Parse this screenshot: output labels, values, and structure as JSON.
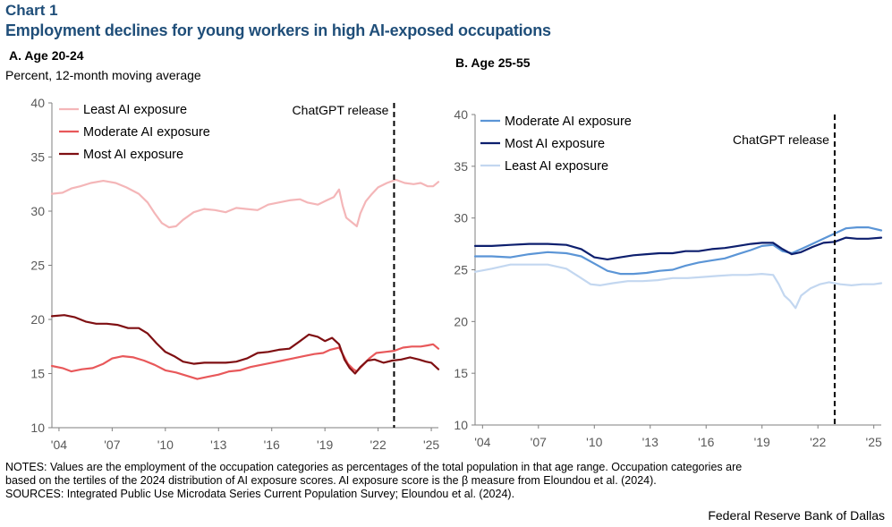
{
  "header": {
    "chart_label": "Chart 1",
    "title": "Employment declines for young workers in high AI-exposed occupations"
  },
  "units": "Percent, 12-month moving average",
  "notes": {
    "line1": "NOTES: Values are the employment of the occupation categories as percentages of the total population in that age range. Occupation categories are",
    "line2": "based on the tertiles of the 2024 distribution of AI exposure scores. AI exposure score is the β measure from Eloundou et al. (2024).",
    "line3": "SOURCES: Integrated Public Use Microdata Series Current Population Survey; Eloundou et al. (2024)."
  },
  "source_credit": "Federal Reserve Bank of Dallas",
  "colors": {
    "least_a": "#f4b6b8",
    "moderate_a": "#e8585a",
    "most_a": "#7f0f12",
    "moderate_b": "#5b95d6",
    "most_b": "#0d1f6e",
    "least_b": "#c3d7f0",
    "title": "#1f4e79"
  },
  "chart_data": [
    {
      "type": "line",
      "panel_title": "A. Age 20-24",
      "ylim": [
        10,
        40
      ],
      "yticks": [
        10,
        15,
        20,
        25,
        30,
        35,
        40
      ],
      "xlim": [
        2003.6,
        2025.4
      ],
      "xticks": [
        2004,
        2007,
        2010,
        2013,
        2016,
        2019,
        2022,
        2025
      ],
      "xtick_labels": [
        "'04",
        "'07",
        "'10",
        "'13",
        "'16",
        "'19",
        "'22",
        "'25"
      ],
      "grid": false,
      "legend_position": "top-left",
      "annotation": {
        "text": "ChatGPT release",
        "x": 2022.9
      },
      "series": [
        {
          "name": "Least AI exposure",
          "color_key": "least_a",
          "points": [
            [
              2003.6,
              31.6
            ],
            [
              2004.2,
              31.7
            ],
            [
              2004.7,
              32.1
            ],
            [
              2005.2,
              32.3
            ],
            [
              2005.8,
              32.6
            ],
            [
              2006.5,
              32.8
            ],
            [
              2007.2,
              32.6
            ],
            [
              2007.8,
              32.2
            ],
            [
              2008.5,
              31.6
            ],
            [
              2009.0,
              30.8
            ],
            [
              2009.4,
              29.8
            ],
            [
              2009.8,
              28.9
            ],
            [
              2010.2,
              28.5
            ],
            [
              2010.6,
              28.6
            ],
            [
              2011.0,
              29.2
            ],
            [
              2011.6,
              29.9
            ],
            [
              2012.2,
              30.2
            ],
            [
              2012.8,
              30.1
            ],
            [
              2013.4,
              29.9
            ],
            [
              2014.0,
              30.3
            ],
            [
              2014.6,
              30.2
            ],
            [
              2015.2,
              30.1
            ],
            [
              2015.8,
              30.6
            ],
            [
              2016.4,
              30.8
            ],
            [
              2017.0,
              31.0
            ],
            [
              2017.6,
              31.1
            ],
            [
              2018.0,
              30.8
            ],
            [
              2018.6,
              30.6
            ],
            [
              2019.1,
              31.0
            ],
            [
              2019.5,
              31.3
            ],
            [
              2019.8,
              32.0
            ],
            [
              2020.0,
              30.5
            ],
            [
              2020.2,
              29.4
            ],
            [
              2020.5,
              29.0
            ],
            [
              2020.8,
              28.6
            ],
            [
              2021.0,
              29.8
            ],
            [
              2021.3,
              30.9
            ],
            [
              2021.6,
              31.5
            ],
            [
              2022.0,
              32.2
            ],
            [
              2022.5,
              32.6
            ],
            [
              2023.0,
              32.9
            ],
            [
              2023.5,
              32.6
            ],
            [
              2024.0,
              32.5
            ],
            [
              2024.4,
              32.6
            ],
            [
              2024.8,
              32.3
            ],
            [
              2025.1,
              32.3
            ],
            [
              2025.4,
              32.7
            ]
          ]
        },
        {
          "name": "Moderate AI exposure",
          "color_key": "moderate_a",
          "points": [
            [
              2003.6,
              15.7
            ],
            [
              2004.2,
              15.5
            ],
            [
              2004.7,
              15.2
            ],
            [
              2005.3,
              15.4
            ],
            [
              2005.9,
              15.5
            ],
            [
              2006.5,
              15.9
            ],
            [
              2007.0,
              16.4
            ],
            [
              2007.6,
              16.6
            ],
            [
              2008.2,
              16.5
            ],
            [
              2008.8,
              16.2
            ],
            [
              2009.4,
              15.8
            ],
            [
              2010.0,
              15.3
            ],
            [
              2010.6,
              15.1
            ],
            [
              2011.2,
              14.8
            ],
            [
              2011.8,
              14.5
            ],
            [
              2012.4,
              14.7
            ],
            [
              2013.0,
              14.9
            ],
            [
              2013.6,
              15.2
            ],
            [
              2014.2,
              15.3
            ],
            [
              2014.8,
              15.6
            ],
            [
              2015.4,
              15.8
            ],
            [
              2016.0,
              16.0
            ],
            [
              2016.6,
              16.2
            ],
            [
              2017.2,
              16.4
            ],
            [
              2017.8,
              16.6
            ],
            [
              2018.4,
              16.8
            ],
            [
              2018.9,
              16.9
            ],
            [
              2019.3,
              17.2
            ],
            [
              2019.8,
              17.4
            ],
            [
              2020.0,
              16.8
            ],
            [
              2020.3,
              15.9
            ],
            [
              2020.6,
              15.4
            ],
            [
              2020.8,
              15.2
            ],
            [
              2021.1,
              15.7
            ],
            [
              2021.5,
              16.4
            ],
            [
              2021.9,
              16.9
            ],
            [
              2022.4,
              17.0
            ],
            [
              2022.9,
              17.1
            ],
            [
              2023.4,
              17.4
            ],
            [
              2023.9,
              17.5
            ],
            [
              2024.4,
              17.5
            ],
            [
              2024.8,
              17.6
            ],
            [
              2025.1,
              17.7
            ],
            [
              2025.4,
              17.3
            ]
          ]
        },
        {
          "name": "Most AI exposure",
          "color_key": "most_a",
          "points": [
            [
              2003.6,
              20.3
            ],
            [
              2004.3,
              20.4
            ],
            [
              2004.9,
              20.2
            ],
            [
              2005.5,
              19.8
            ],
            [
              2006.1,
              19.6
            ],
            [
              2006.7,
              19.6
            ],
            [
              2007.3,
              19.5
            ],
            [
              2007.9,
              19.2
            ],
            [
              2008.5,
              19.2
            ],
            [
              2009.0,
              18.7
            ],
            [
              2009.5,
              17.8
            ],
            [
              2010.0,
              17.0
            ],
            [
              2010.5,
              16.6
            ],
            [
              2011.0,
              16.1
            ],
            [
              2011.6,
              15.9
            ],
            [
              2012.2,
              16.0
            ],
            [
              2012.8,
              16.0
            ],
            [
              2013.4,
              16.0
            ],
            [
              2014.0,
              16.1
            ],
            [
              2014.6,
              16.4
            ],
            [
              2015.2,
              16.9
            ],
            [
              2015.8,
              17.0
            ],
            [
              2016.4,
              17.2
            ],
            [
              2017.0,
              17.3
            ],
            [
              2017.6,
              18.0
            ],
            [
              2018.1,
              18.6
            ],
            [
              2018.6,
              18.4
            ],
            [
              2019.0,
              18.0
            ],
            [
              2019.4,
              18.3
            ],
            [
              2019.8,
              17.7
            ],
            [
              2020.1,
              16.3
            ],
            [
              2020.4,
              15.5
            ],
            [
              2020.7,
              15.0
            ],
            [
              2021.0,
              15.6
            ],
            [
              2021.4,
              16.2
            ],
            [
              2021.8,
              16.3
            ],
            [
              2022.3,
              16.0
            ],
            [
              2022.8,
              16.2
            ],
            [
              2023.3,
              16.3
            ],
            [
              2023.8,
              16.5
            ],
            [
              2024.3,
              16.3
            ],
            [
              2024.7,
              16.1
            ],
            [
              2025.0,
              16.0
            ],
            [
              2025.4,
              15.4
            ]
          ]
        }
      ]
    },
    {
      "type": "line",
      "panel_title": "B. Age 25-55",
      "ylim": [
        10,
        40
      ],
      "yticks": [
        10,
        15,
        20,
        25,
        30,
        35,
        40
      ],
      "xlim": [
        2003.6,
        2025.4
      ],
      "xticks": [
        2004,
        2007,
        2010,
        2013,
        2016,
        2019,
        2022,
        2025
      ],
      "xtick_labels": [
        "'04",
        "'07",
        "'10",
        "'13",
        "'16",
        "'19",
        "'22",
        "'25"
      ],
      "grid": false,
      "legend_position": "top-left",
      "annotation": {
        "text": "ChatGPT release",
        "x": 2022.9
      },
      "series": [
        {
          "name": "Moderate AI exposure",
          "color_key": "moderate_b",
          "points": [
            [
              2003.6,
              26.3
            ],
            [
              2004.5,
              26.3
            ],
            [
              2005.5,
              26.2
            ],
            [
              2006.5,
              26.5
            ],
            [
              2007.5,
              26.7
            ],
            [
              2008.5,
              26.6
            ],
            [
              2009.3,
              26.3
            ],
            [
              2010.0,
              25.6
            ],
            [
              2010.7,
              24.9
            ],
            [
              2011.4,
              24.6
            ],
            [
              2012.1,
              24.6
            ],
            [
              2012.8,
              24.7
            ],
            [
              2013.5,
              24.9
            ],
            [
              2014.2,
              25.0
            ],
            [
              2014.9,
              25.4
            ],
            [
              2015.6,
              25.7
            ],
            [
              2016.3,
              25.9
            ],
            [
              2017.0,
              26.1
            ],
            [
              2017.7,
              26.5
            ],
            [
              2018.4,
              26.9
            ],
            [
              2019.0,
              27.3
            ],
            [
              2019.6,
              27.4
            ],
            [
              2020.1,
              26.8
            ],
            [
              2020.6,
              26.6
            ],
            [
              2021.1,
              27.0
            ],
            [
              2021.7,
              27.5
            ],
            [
              2022.3,
              28.0
            ],
            [
              2022.9,
              28.5
            ],
            [
              2023.5,
              29.0
            ],
            [
              2024.1,
              29.1
            ],
            [
              2024.7,
              29.1
            ],
            [
              2025.4,
              28.8
            ]
          ]
        },
        {
          "name": "Most AI exposure",
          "color_key": "most_b",
          "points": [
            [
              2003.6,
              27.3
            ],
            [
              2004.5,
              27.3
            ],
            [
              2005.5,
              27.4
            ],
            [
              2006.5,
              27.5
            ],
            [
              2007.5,
              27.5
            ],
            [
              2008.5,
              27.4
            ],
            [
              2009.3,
              27.0
            ],
            [
              2010.0,
              26.2
            ],
            [
              2010.7,
              26.0
            ],
            [
              2011.4,
              26.2
            ],
            [
              2012.1,
              26.4
            ],
            [
              2012.8,
              26.5
            ],
            [
              2013.5,
              26.6
            ],
            [
              2014.2,
              26.6
            ],
            [
              2014.9,
              26.8
            ],
            [
              2015.6,
              26.8
            ],
            [
              2016.3,
              27.0
            ],
            [
              2017.0,
              27.1
            ],
            [
              2017.7,
              27.3
            ],
            [
              2018.4,
              27.5
            ],
            [
              2019.0,
              27.6
            ],
            [
              2019.6,
              27.6
            ],
            [
              2020.1,
              27.0
            ],
            [
              2020.6,
              26.5
            ],
            [
              2021.1,
              26.7
            ],
            [
              2021.7,
              27.2
            ],
            [
              2022.3,
              27.6
            ],
            [
              2022.9,
              27.7
            ],
            [
              2023.5,
              28.1
            ],
            [
              2024.1,
              28.0
            ],
            [
              2024.7,
              28.0
            ],
            [
              2025.4,
              28.1
            ]
          ]
        },
        {
          "name": "Least AI exposure",
          "color_key": "least_b",
          "points": [
            [
              2003.6,
              24.8
            ],
            [
              2004.5,
              25.1
            ],
            [
              2005.5,
              25.5
            ],
            [
              2006.5,
              25.5
            ],
            [
              2007.5,
              25.5
            ],
            [
              2008.5,
              25.1
            ],
            [
              2009.2,
              24.3
            ],
            [
              2009.8,
              23.6
            ],
            [
              2010.3,
              23.5
            ],
            [
              2011.0,
              23.7
            ],
            [
              2011.8,
              23.9
            ],
            [
              2012.6,
              23.9
            ],
            [
              2013.4,
              24.0
            ],
            [
              2014.2,
              24.2
            ],
            [
              2015.0,
              24.2
            ],
            [
              2015.8,
              24.3
            ],
            [
              2016.6,
              24.4
            ],
            [
              2017.4,
              24.5
            ],
            [
              2018.2,
              24.5
            ],
            [
              2019.0,
              24.6
            ],
            [
              2019.6,
              24.5
            ],
            [
              2019.9,
              23.6
            ],
            [
              2020.2,
              22.5
            ],
            [
              2020.5,
              22.0
            ],
            [
              2020.8,
              21.3
            ],
            [
              2021.1,
              22.5
            ],
            [
              2021.6,
              23.2
            ],
            [
              2022.1,
              23.6
            ],
            [
              2022.6,
              23.8
            ],
            [
              2023.2,
              23.6
            ],
            [
              2023.8,
              23.5
            ],
            [
              2024.4,
              23.6
            ],
            [
              2025.0,
              23.6
            ],
            [
              2025.4,
              23.7
            ]
          ]
        }
      ]
    }
  ]
}
